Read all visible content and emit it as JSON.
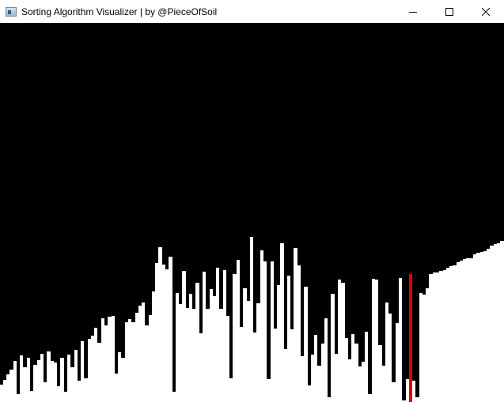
{
  "window": {
    "title": "Sorting Algorithm Visualizer | by @PieceOfSoil",
    "controls": [
      {
        "name": "minimize-button",
        "icon": "minimize-icon"
      },
      {
        "name": "maximize-button",
        "icon": "maximize-icon"
      },
      {
        "name": "close-button",
        "icon": "close-icon"
      }
    ]
  },
  "visualizer": {
    "background_color": "#000000",
    "bar_color": "#ffffff",
    "highlight_color": "#e00000",
    "max_value": 480,
    "highlight_index": 121,
    "values": [
      22,
      28,
      35,
      41,
      52,
      10,
      59,
      44,
      56,
      14,
      47,
      53,
      61,
      25,
      64,
      52,
      50,
      20,
      56,
      13,
      60,
      44,
      66,
      27,
      77,
      30,
      80,
      84,
      94,
      75,
      106,
      97,
      108,
      109,
      36,
      63,
      56,
      101,
      105,
      101,
      113,
      122,
      126,
      97,
      110,
      140,
      176,
      196,
      174,
      168,
      184,
      13,
      138,
      124,
      166,
      119,
      137,
      118,
      151,
      87,
      165,
      118,
      143,
      134,
      170,
      118,
      167,
      109,
      30,
      162,
      180,
      95,
      144,
      128,
      209,
      88,
      125,
      192,
      178,
      29,
      178,
      93,
      148,
      201,
      67,
      160,
      92,
      195,
      173,
      58,
      146,
      21,
      60,
      85,
      46,
      74,
      106,
      6,
      137,
      61,
      155,
      151,
      81,
      54,
      86,
      74,
      45,
      51,
      89,
      10,
      156,
      155,
      72,
      46,
      126,
      112,
      25,
      100,
      157,
      2,
      29,
      162,
      27,
      6,
      138,
      136,
      144,
      162,
      164,
      164,
      166,
      167,
      170,
      172,
      173,
      177,
      179,
      181,
      182,
      182,
      187,
      189,
      190,
      191,
      194,
      198,
      200,
      201,
      204
    ]
  }
}
